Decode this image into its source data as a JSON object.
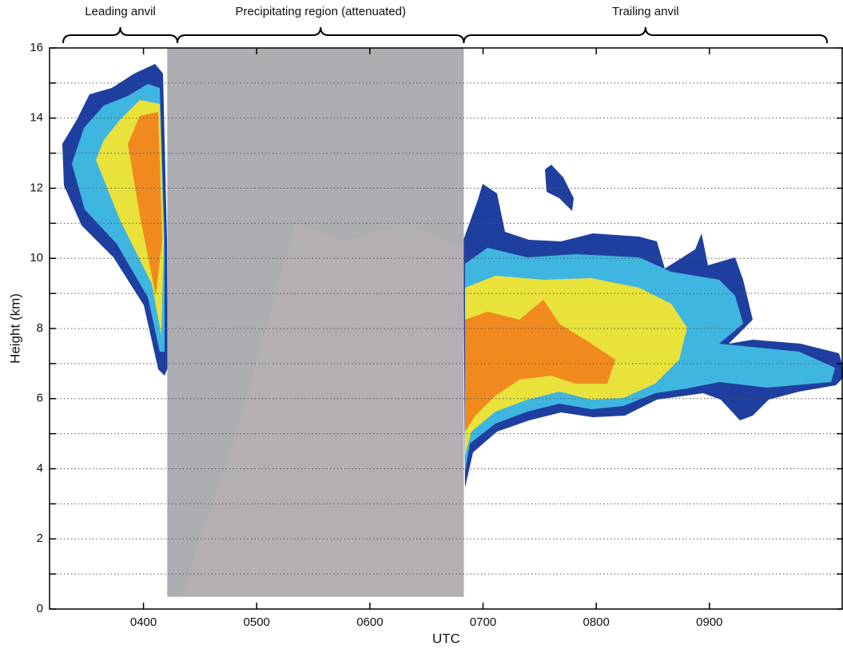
{
  "chart_data": {
    "type": "heatmap",
    "xlabel": "UTC",
    "ylabel": "Height (km)",
    "xlim": [
      3.17,
      10.18
    ],
    "ylim": [
      0,
      16
    ],
    "xticks": [
      {
        "value": 4,
        "label": "0400"
      },
      {
        "value": 5,
        "label": "0500"
      },
      {
        "value": 6,
        "label": "0600"
      },
      {
        "value": 7,
        "label": "0700"
      },
      {
        "value": 8,
        "label": "0800"
      },
      {
        "value": 9,
        "label": "0900"
      }
    ],
    "yticks": [
      0,
      2,
      4,
      6,
      8,
      10,
      12,
      14,
      16
    ],
    "minor_yticks": [
      1,
      3,
      5,
      7,
      9,
      11,
      13,
      15
    ],
    "grid": true,
    "shaded_region": {
      "x": [
        4.21,
        6.83
      ],
      "color": "#a9aaae"
    },
    "annotations": [
      {
        "label": "Leading anvil",
        "x": [
          3.29,
          4.3
        ]
      },
      {
        "label": "Precipitating region (attenuated)",
        "x": [
          4.3,
          6.83
        ]
      },
      {
        "label": "Trailing anvil",
        "x": [
          6.83,
          10.04
        ]
      }
    ]
  }
}
